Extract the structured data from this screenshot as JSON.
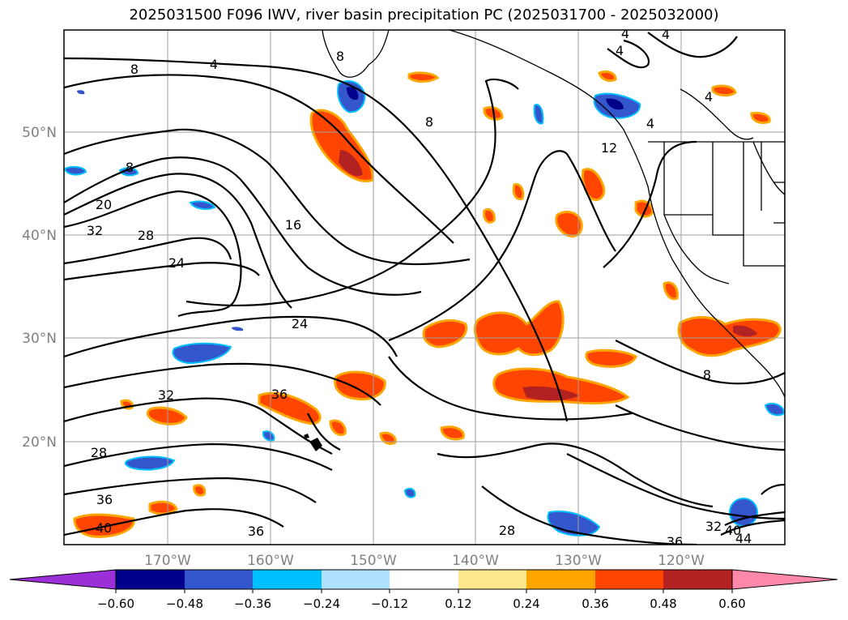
{
  "title": "2025031500 F096 IWV, river basin precipitation PC (2025031700 - 2025032000)",
  "latitude_labels": [
    "50°N",
    "40°N",
    "30°N",
    "20°N"
  ],
  "longitude_labels": [
    "170°W",
    "160°W",
    "150°W",
    "140°W",
    "130°W",
    "120°W"
  ],
  "colorbar": {
    "tick_labels": [
      "−0.60",
      "−0.48",
      "−0.36",
      "−0.24",
      "−0.12",
      "0.12",
      "0.24",
      "0.36",
      "0.48",
      "0.60"
    ],
    "colors": [
      "#9b30d9",
      "#00008b",
      "#3456cc",
      "#00bfff",
      "#b0e2ff",
      "#ffffff",
      "#ffe78c",
      "#ffa500",
      "#ff4500",
      "#b22222",
      "#ff88aa"
    ]
  },
  "contour_labels": [
    {
      "text": "8"
    },
    {
      "text": "4"
    },
    {
      "text": "8"
    },
    {
      "text": "20"
    },
    {
      "text": "32"
    },
    {
      "text": "28"
    },
    {
      "text": "24"
    },
    {
      "text": "16"
    },
    {
      "text": "24"
    },
    {
      "text": "32"
    },
    {
      "text": "36"
    },
    {
      "text": "28"
    },
    {
      "text": "36"
    },
    {
      "text": "40"
    },
    {
      "text": "36"
    },
    {
      "text": "28"
    },
    {
      "text": "8"
    },
    {
      "text": "12"
    },
    {
      "text": "4"
    },
    {
      "text": "4"
    },
    {
      "text": "4"
    },
    {
      "text": "4"
    },
    {
      "text": "8"
    },
    {
      "text": "32"
    },
    {
      "text": "40"
    },
    {
      "text": "44"
    },
    {
      "text": "36"
    },
    {
      "text": "8"
    },
    {
      "text": "4"
    }
  ]
}
